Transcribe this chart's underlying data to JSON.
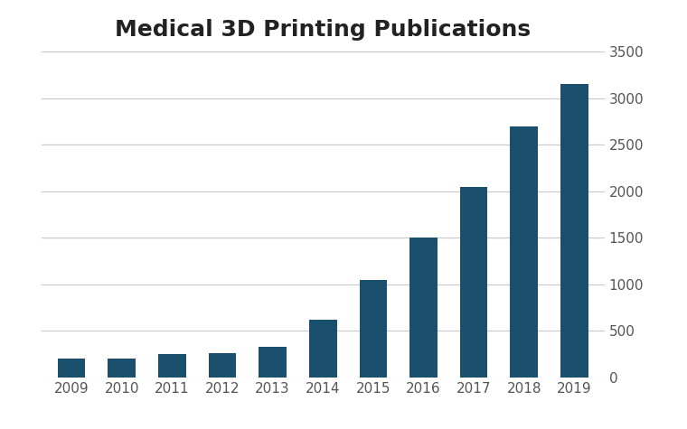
{
  "title": "Medical 3D Printing Publications",
  "years": [
    "2009",
    "2010",
    "2011",
    "2012",
    "2013",
    "2014",
    "2015",
    "2016",
    "2017",
    "2018",
    "2019"
  ],
  "values": [
    200,
    205,
    255,
    265,
    330,
    620,
    1050,
    1500,
    2050,
    2700,
    3150
  ],
  "bar_color": "#1a4f6e",
  "background_color": "#ffffff",
  "ylim": [
    0,
    3500
  ],
  "yticks": [
    0,
    500,
    1000,
    1500,
    2000,
    2500,
    3000,
    3500
  ],
  "title_fontsize": 18,
  "tick_fontsize": 11,
  "grid_color": "#c8c8c8",
  "bar_width": 0.55,
  "figsize": [
    7.6,
    4.75
  ],
  "dpi": 100
}
